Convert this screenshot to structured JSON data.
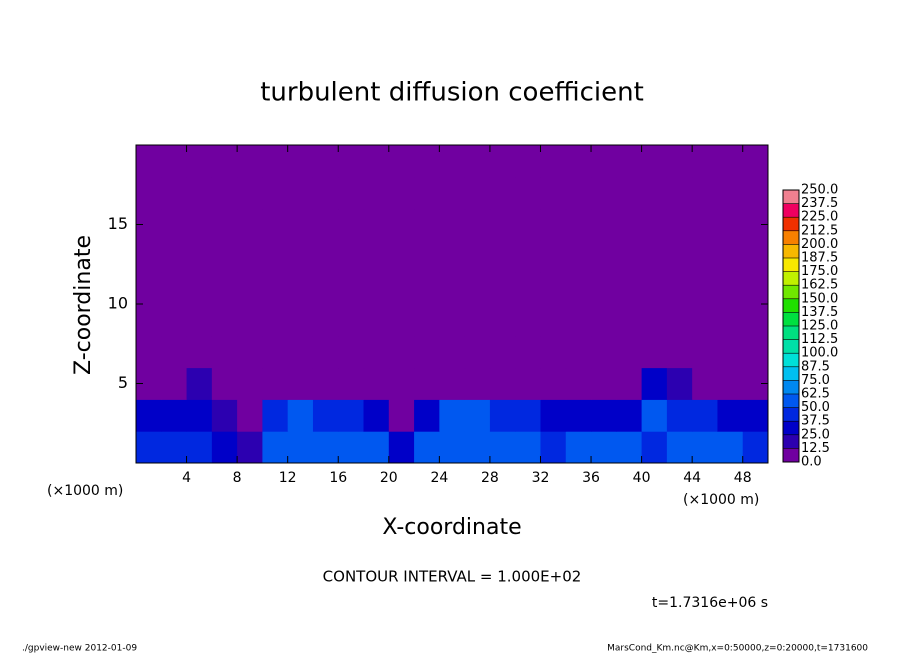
{
  "chart_data": {
    "type": "heatmap",
    "title": "turbulent diffusion coefficient",
    "x_label": "X-coordinate",
    "y_label": "Z-coordinate",
    "x_unit": "(×1000 m)",
    "y_unit": "(×1000 m)",
    "xlim": [
      0,
      50
    ],
    "xticks": [
      4,
      8,
      12,
      16,
      20,
      24,
      28,
      32,
      36,
      40,
      44,
      48
    ],
    "ylim": [
      0,
      20
    ],
    "yticks": [
      5,
      10,
      15
    ],
    "z": [
      [
        45,
        40,
        40,
        35,
        20,
        55,
        55,
        60,
        55,
        50,
        30,
        55,
        55,
        60,
        55,
        50,
        40,
        55,
        50,
        50,
        45,
        50,
        55,
        50,
        45
      ],
      [
        30,
        25,
        30,
        20,
        0,
        40,
        50,
        45,
        45,
        30,
        10,
        35,
        50,
        50,
        45,
        40,
        30,
        35,
        30,
        35,
        50,
        45,
        40,
        30,
        25
      ],
      [
        0,
        0,
        15,
        0,
        0,
        0,
        10,
        5,
        5,
        5,
        0,
        0,
        0,
        0,
        0,
        0,
        0,
        0,
        0,
        5,
        30,
        15,
        5,
        0,
        0
      ],
      [
        0,
        0,
        0,
        0,
        0,
        0,
        0,
        0,
        12,
        0,
        0,
        0,
        0,
        0,
        0,
        0,
        0,
        0,
        12,
        0,
        0,
        12,
        0,
        0,
        0
      ],
      [
        0,
        0,
        0,
        0,
        0,
        0,
        0,
        0,
        0,
        0,
        0,
        0,
        0,
        0,
        0,
        0,
        0,
        0,
        0,
        0,
        0,
        0,
        0,
        0,
        0
      ],
      [
        0,
        0,
        0,
        0,
        0,
        0,
        0,
        0,
        0,
        0,
        0,
        0,
        0,
        0,
        0,
        0,
        0,
        0,
        0,
        0,
        0,
        0,
        0,
        0,
        0
      ],
      [
        0,
        0,
        0,
        0,
        0,
        0,
        0,
        0,
        0,
        0,
        0,
        0,
        0,
        0,
        0,
        0,
        0,
        0,
        0,
        0,
        0,
        0,
        0,
        0,
        0
      ],
      [
        0,
        0,
        0,
        0,
        0,
        0,
        0,
        0,
        0,
        0,
        0,
        0,
        0,
        0,
        0,
        0,
        0,
        0,
        0,
        0,
        0,
        0,
        0,
        0,
        0
      ],
      [
        0,
        0,
        0,
        0,
        0,
        0,
        0,
        0,
        0,
        0,
        0,
        0,
        0,
        0,
        0,
        0,
        0,
        0,
        0,
        0,
        0,
        0,
        0,
        0,
        0
      ],
      [
        0,
        0,
        0,
        0,
        0,
        0,
        0,
        0,
        0,
        0,
        0,
        0,
        0,
        0,
        0,
        0,
        0,
        0,
        0,
        0,
        0,
        0,
        0,
        0,
        0
      ]
    ],
    "levels": [
      {
        "value": 0,
        "label": "0.0"
      },
      12.5,
      {
        "value": 25,
        "label": "25.0"
      },
      37.5,
      {
        "value": 50,
        "label": "50.0"
      },
      62.5,
      {
        "value": 75,
        "label": "75.0"
      },
      87.5,
      {
        "value": 100,
        "label": "100.0"
      },
      112.5,
      {
        "value": 125,
        "label": "125.0"
      },
      137.5,
      {
        "value": 150,
        "label": "150.0"
      },
      162.5,
      {
        "value": 175,
        "label": "175.0"
      },
      187.5,
      {
        "value": 200,
        "label": "200.0"
      },
      212.5,
      {
        "value": 225,
        "label": "225.0"
      },
      237.5,
      {
        "value": 250,
        "label": "250.0"
      }
    ],
    "colors": [
      "#7000a0",
      "#2c00b0",
      "#0000c8",
      "#0028e0",
      "#0058f0",
      "#0088f0",
      "#00c0f0",
      "#00e0d8",
      "#00e0a8",
      "#00e080",
      "#00e040",
      "#20e000",
      "#70e800",
      "#c0f000",
      "#f8e800",
      "#f8b800",
      "#f88000",
      "#f03000",
      "#f00060",
      "#f08090"
    ],
    "contour_interval": "CONTOUR INTERVAL = 1.000E+02",
    "time": "t=1.7316e+06 s",
    "footer_left": "./gpview-new   2012-01-09",
    "footer_right": "MarsCond_Km.nc@Km,x=0:50000,z=0:20000,t=1731600"
  }
}
